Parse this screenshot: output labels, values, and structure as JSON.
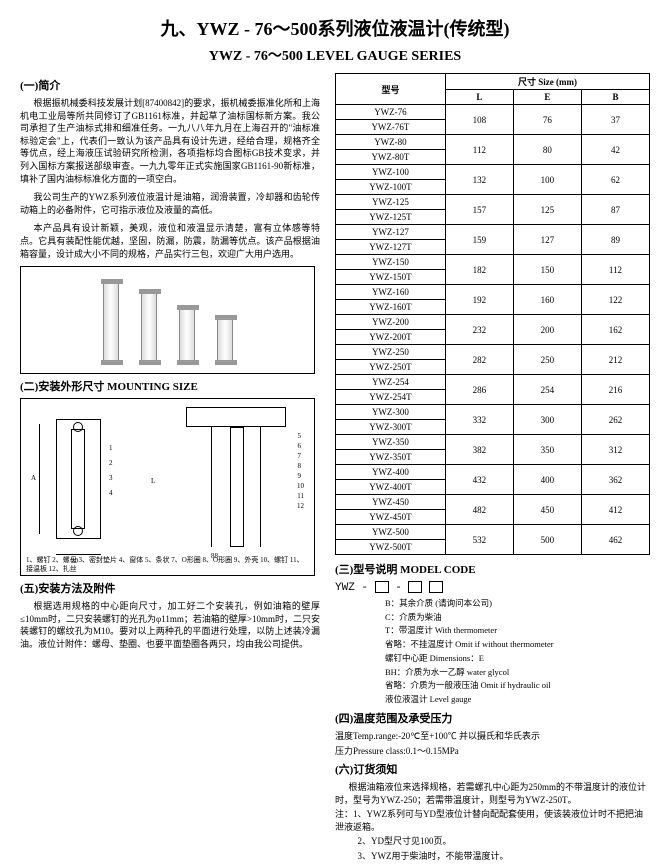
{
  "title_cn": "九、YWZ - 76～500系列液位液温计(传统型)",
  "title_en": "YWZ - 76～500 LEVEL GAUGE SERIES",
  "s1_head": "(一)简介",
  "p1": "根据振机械委科技发展计划[87400842]的要求，振机械委振准化所和上海机电工业局等所共同修订了GB1161标准，并起草了油标国标新方案。我公司承担了生产油标式排和细准任务。一九八八年九月在上海召开的\"油标准标验定会\"上，代表们一致认为该产品具有设计先进，经给合理，规格齐全等优点，经上海液压试验研究所检测，各项指标均合图标GB技术变求，并列入国标方案报送部级审查。一九九零年正式实施国家GB1161-90新标准，填补了国内油标标准化方面的一项空白。",
  "p2": "我公司生产的YWZ系列液位液温计是油箱，润滑装置，冷却器和齿轮传动箱上的必备附件，它可指示液位及液量的高低。",
  "p3": "本产品具有设计新颖，美观，液位和液温显示清楚，富有立体感等特点。它具有装配性能优越，坚固，防漏，防震，防漏等优点。该产品根据油箱容量，设计成大小不同的规格，产品实行三包，欢迎广大用户选用。",
  "s2_head": "(二)安装外形尺寸  MOUNTING SIZE",
  "dia_caption": "1、螺钉 2、螺母 3、密封垫片 4、窗体 5、条状 7、O形圈 8、O形圈 9、外壳 10、螺钉 11、接温板 12、扎丝",
  "s5_head": "(五)安装方法及附件",
  "install_p1": "根据选用规格的中心距向尺寸，加工好二个安装孔，例如油箱的壁厚≤10mm时，二只安装螺钉的光孔为φ11mm；若油箱的壁厚>10mm时，二只安装螺钉的螺纹孔为M10。要对以上两种孔的平面进行处理，以防上述装冷漏油。液位计附件：螺母、垫圈、也要平面垫圈各两只，均由我公司提供。",
  "table": {
    "h_model": "型号",
    "h_size": "尺寸 Size (mm)",
    "h_L": "L",
    "h_E": "E",
    "h_B": "B",
    "rows": [
      {
        "m": [
          "YWZ-76",
          "YWZ-76T"
        ],
        "l": "108",
        "e": "76",
        "b": "37"
      },
      {
        "m": [
          "YWZ-80",
          "YWZ-80T"
        ],
        "l": "112",
        "e": "80",
        "b": "42"
      },
      {
        "m": [
          "YWZ-100",
          "YWZ-100T"
        ],
        "l": "132",
        "e": "100",
        "b": "62"
      },
      {
        "m": [
          "YWZ-125",
          "YWZ-125T"
        ],
        "l": "157",
        "e": "125",
        "b": "87"
      },
      {
        "m": [
          "YWZ-127",
          "YWZ-127T"
        ],
        "l": "159",
        "e": "127",
        "b": "89"
      },
      {
        "m": [
          "YWZ-150",
          "YWZ-150T"
        ],
        "l": "182",
        "e": "150",
        "b": "112"
      },
      {
        "m": [
          "YWZ-160",
          "YWZ-160T"
        ],
        "l": "192",
        "e": "160",
        "b": "122"
      },
      {
        "m": [
          "YWZ-200",
          "YWZ-200T"
        ],
        "l": "232",
        "e": "200",
        "b": "162"
      },
      {
        "m": [
          "YWZ-250",
          "YWZ-250T"
        ],
        "l": "282",
        "e": "250",
        "b": "212"
      },
      {
        "m": [
          "YWZ-254",
          "YWZ-254T"
        ],
        "l": "286",
        "e": "254",
        "b": "216"
      },
      {
        "m": [
          "YWZ-300",
          "YWZ-300T"
        ],
        "l": "332",
        "e": "300",
        "b": "262"
      },
      {
        "m": [
          "YWZ-350",
          "YWZ-350T"
        ],
        "l": "382",
        "e": "350",
        "b": "312"
      },
      {
        "m": [
          "YWZ-400",
          "YWZ-400T"
        ],
        "l": "432",
        "e": "400",
        "b": "362"
      },
      {
        "m": [
          "YWZ-450",
          "YWZ-450T"
        ],
        "l": "482",
        "e": "450",
        "b": "412"
      },
      {
        "m": [
          "YWZ-500",
          "YWZ-500T"
        ],
        "l": "532",
        "e": "500",
        "b": "462"
      }
    ]
  },
  "s3_head": "(三)型号说明  MODEL CODE",
  "code_prefix": "YWZ -",
  "code_d1": "B：其余介质 (请询问本公司)",
  "code_d2": "C：介质为柴油",
  "code_d3": "T：带温度计 With thermometer",
  "code_d4": "省略：不挂温度计 Omit if without thermometer",
  "code_d5": "螺钉中心距 Dimensions：E",
  "code_d6": "BH：介质为水一乙醇 water glycol",
  "code_d7": "省略：介质为一般液压油 Omit if hydraulic oil",
  "code_d8": "液位液温计 Level gauge",
  "s4_head": "(四)温度范围及承受压力",
  "temp_line": "温度Temp.range:-20℃至+100℃ 并以摄氏和华氏表示",
  "press_line": "压力Pressure class:0.1～0.15MPa",
  "s6_head": "(六)订货须知",
  "order_p": "根据油箱液位来选择规格，若需螺孔中心距为250mm的不带温度计的液位计时，型号为YWZ-250；若需带温度计，则型号为YWZ-250T。",
  "note1": "注：1、YWZ系列可与YD型液位计替向配配套使用，使该装液位计时不把把油泄液返箱。",
  "note2": "2、YD型尺寸见100页。",
  "note3": "3、YWZ用于柴油时，不能带温度计。",
  "dim_labels": {
    "n1": "1",
    "n2": "2",
    "n3": "3",
    "n4": "4",
    "n5": "5",
    "n6": "6",
    "n7": "7",
    "n8": "8",
    "n9": "9",
    "n10": "10",
    "n11": "11",
    "n12": "12",
    "dimA": "A",
    "dimB": "B",
    "dimL": "L",
    "dim20": "20",
    "dim88": "88"
  }
}
